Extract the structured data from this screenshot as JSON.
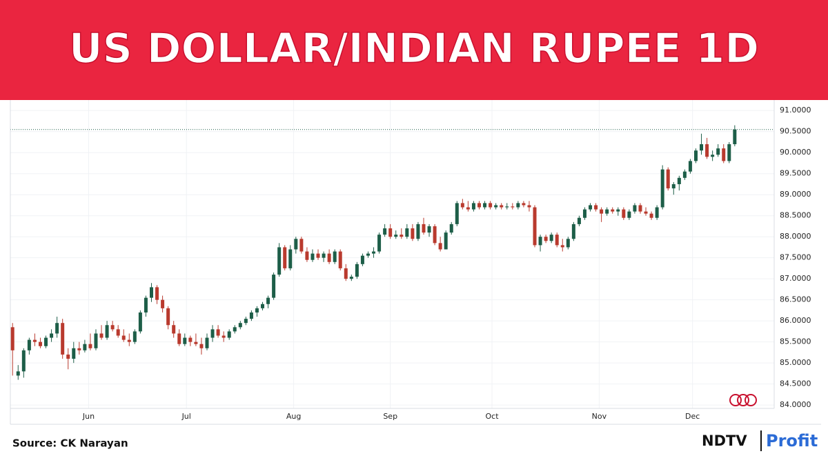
{
  "chart_data": {
    "type": "candlestick",
    "title": "US DOLLAR/INDIAN RUPEE 1D",
    "source": "Source: CK Narayan",
    "brand": [
      "NDTV",
      "Profit"
    ],
    "up_color": "#1d5e48",
    "down_color": "#b93a2e",
    "grid": true,
    "ylim": [
      83.92,
      91.25
    ],
    "xlim": [
      -0.4,
      137.1
    ],
    "yticks": [
      {
        "value": 84,
        "label": "84.0000"
      },
      {
        "value": 84.5,
        "label": "84.5000"
      },
      {
        "value": 85,
        "label": "85.0000"
      },
      {
        "value": 85.5,
        "label": "85.5000"
      },
      {
        "value": 86,
        "label": "86.0000"
      },
      {
        "value": 86.5,
        "label": "86.5000"
      },
      {
        "value": 87,
        "label": "87.0000"
      },
      {
        "value": 87.5,
        "label": "87.5000"
      },
      {
        "value": 88,
        "label": "88.0000"
      },
      {
        "value": 88.5,
        "label": "88.5000"
      },
      {
        "value": 89,
        "label": "89.0000"
      },
      {
        "value": 89.5,
        "label": "89.5000"
      },
      {
        "value": 90,
        "label": "90.0000"
      },
      {
        "value": 90.5,
        "label": "90.5000"
      },
      {
        "value": 91,
        "label": "91.0000"
      }
    ],
    "xticks": [
      {
        "value": 13.7,
        "label": "Jun"
      },
      {
        "value": 31.3,
        "label": "Jul"
      },
      {
        "value": 50.6,
        "label": "Aug"
      },
      {
        "value": 68,
        "label": "Sep"
      },
      {
        "value": 86.3,
        "label": "Oct"
      },
      {
        "value": 105.6,
        "label": "Nov"
      },
      {
        "value": 122.4,
        "label": "Dec"
      }
    ],
    "ohlc": [
      [
        85.85,
        85.95,
        84.7,
        85.3
      ],
      [
        84.7,
        84.95,
        84.6,
        84.8
      ],
      [
        84.8,
        85.35,
        84.65,
        85.3
      ],
      [
        85.3,
        85.6,
        85.2,
        85.55
      ],
      [
        85.55,
        85.7,
        85.4,
        85.5
      ],
      [
        85.5,
        85.6,
        85.35,
        85.4
      ],
      [
        85.4,
        85.65,
        85.35,
        85.6
      ],
      [
        85.6,
        85.8,
        85.5,
        85.7
      ],
      [
        85.7,
        86.1,
        85.6,
        85.95
      ],
      [
        85.95,
        86.05,
        85.1,
        85.2
      ],
      [
        85.2,
        85.35,
        84.85,
        85.1
      ],
      [
        85.1,
        85.5,
        85.0,
        85.35
      ],
      [
        85.35,
        85.5,
        85.2,
        85.3
      ],
      [
        85.3,
        85.55,
        85.25,
        85.45
      ],
      [
        85.45,
        85.7,
        85.3,
        85.35
      ],
      [
        85.35,
        85.8,
        85.3,
        85.7
      ],
      [
        85.7,
        85.9,
        85.55,
        85.6
      ],
      [
        85.6,
        86.0,
        85.55,
        85.9
      ],
      [
        85.9,
        86.0,
        85.75,
        85.8
      ],
      [
        85.8,
        85.9,
        85.6,
        85.65
      ],
      [
        85.65,
        85.8,
        85.5,
        85.55
      ],
      [
        85.55,
        85.7,
        85.4,
        85.5
      ],
      [
        85.5,
        85.8,
        85.45,
        85.75
      ],
      [
        85.75,
        86.25,
        85.7,
        86.2
      ],
      [
        86.2,
        86.6,
        86.1,
        86.55
      ],
      [
        86.55,
        86.9,
        86.45,
        86.8
      ],
      [
        86.8,
        86.85,
        86.4,
        86.5
      ],
      [
        86.5,
        86.6,
        86.2,
        86.3
      ],
      [
        86.3,
        86.35,
        85.8,
        85.9
      ],
      [
        85.9,
        86.0,
        85.6,
        85.7
      ],
      [
        85.7,
        85.8,
        85.4,
        85.45
      ],
      [
        85.45,
        85.7,
        85.4,
        85.6
      ],
      [
        85.6,
        85.65,
        85.4,
        85.5
      ],
      [
        85.5,
        85.7,
        85.4,
        85.45
      ],
      [
        85.45,
        85.6,
        85.2,
        85.35
      ],
      [
        85.35,
        85.7,
        85.3,
        85.6
      ],
      [
        85.6,
        85.9,
        85.5,
        85.8
      ],
      [
        85.8,
        85.9,
        85.6,
        85.65
      ],
      [
        85.65,
        85.75,
        85.5,
        85.6
      ],
      [
        85.6,
        85.8,
        85.55,
        85.75
      ],
      [
        85.75,
        85.9,
        85.7,
        85.85
      ],
      [
        85.85,
        86.0,
        85.8,
        85.95
      ],
      [
        85.95,
        86.1,
        85.9,
        86.05
      ],
      [
        86.05,
        86.25,
        86.0,
        86.2
      ],
      [
        86.2,
        86.35,
        86.1,
        86.3
      ],
      [
        86.3,
        86.45,
        86.25,
        86.4
      ],
      [
        86.4,
        86.6,
        86.3,
        86.55
      ],
      [
        86.55,
        87.15,
        86.5,
        87.1
      ],
      [
        87.1,
        87.85,
        87.05,
        87.75
      ],
      [
        87.75,
        87.8,
        87.2,
        87.25
      ],
      [
        87.25,
        87.8,
        87.2,
        87.7
      ],
      [
        87.7,
        88.0,
        87.6,
        87.95
      ],
      [
        87.95,
        88.0,
        87.6,
        87.65
      ],
      [
        87.65,
        87.75,
        87.4,
        87.45
      ],
      [
        87.45,
        87.7,
        87.4,
        87.6
      ],
      [
        87.6,
        87.7,
        87.45,
        87.5
      ],
      [
        87.5,
        87.65,
        87.4,
        87.6
      ],
      [
        87.6,
        87.7,
        87.35,
        87.4
      ],
      [
        87.4,
        87.7,
        87.35,
        87.65
      ],
      [
        87.65,
        87.7,
        87.2,
        87.25
      ],
      [
        87.25,
        87.35,
        86.95,
        87.0
      ],
      [
        87.0,
        87.1,
        86.95,
        87.05
      ],
      [
        87.05,
        87.4,
        87.0,
        87.35
      ],
      [
        87.35,
        87.6,
        87.3,
        87.55
      ],
      [
        87.55,
        87.65,
        87.5,
        87.6
      ],
      [
        87.6,
        87.75,
        87.5,
        87.65
      ],
      [
        87.65,
        88.1,
        87.6,
        88.05
      ],
      [
        88.05,
        88.3,
        88.0,
        88.2
      ],
      [
        88.2,
        88.3,
        87.95,
        88.0
      ],
      [
        88.0,
        88.15,
        87.95,
        88.05
      ],
      [
        88.05,
        88.2,
        87.95,
        88.0
      ],
      [
        88.0,
        88.3,
        87.95,
        88.2
      ],
      [
        88.2,
        88.3,
        87.9,
        87.95
      ],
      [
        87.95,
        88.35,
        87.9,
        88.3
      ],
      [
        88.3,
        88.45,
        88.05,
        88.1
      ],
      [
        88.1,
        88.3,
        88.0,
        88.25
      ],
      [
        88.25,
        88.3,
        87.8,
        87.85
      ],
      [
        87.85,
        88.0,
        87.65,
        87.7
      ],
      [
        87.7,
        88.15,
        87.7,
        88.1
      ],
      [
        88.1,
        88.35,
        88.05,
        88.3
      ],
      [
        88.3,
        88.85,
        88.25,
        88.8
      ],
      [
        88.8,
        88.9,
        88.65,
        88.7
      ],
      [
        88.7,
        88.85,
        88.6,
        88.65
      ],
      [
        88.65,
        88.85,
        88.6,
        88.8
      ],
      [
        88.8,
        88.85,
        88.65,
        88.7
      ],
      [
        88.7,
        88.85,
        88.65,
        88.8
      ],
      [
        88.8,
        88.85,
        88.65,
        88.7
      ],
      [
        88.7,
        88.8,
        88.65,
        88.75
      ],
      [
        88.75,
        88.8,
        88.65,
        88.7
      ],
      [
        88.7,
        88.8,
        88.65,
        88.72
      ],
      [
        88.72,
        88.8,
        88.65,
        88.7
      ],
      [
        88.7,
        88.85,
        88.65,
        88.8
      ],
      [
        88.8,
        88.85,
        88.7,
        88.75
      ],
      [
        88.75,
        88.85,
        88.6,
        88.7
      ],
      [
        88.7,
        88.75,
        87.75,
        87.8
      ],
      [
        87.8,
        88.05,
        87.65,
        88.0
      ],
      [
        88.0,
        88.05,
        87.85,
        87.9
      ],
      [
        87.9,
        88.1,
        87.85,
        88.05
      ],
      [
        88.05,
        88.1,
        87.75,
        87.8
      ],
      [
        87.8,
        87.95,
        87.65,
        87.75
      ],
      [
        87.75,
        88.0,
        87.7,
        87.95
      ],
      [
        87.95,
        88.35,
        87.9,
        88.3
      ],
      [
        88.3,
        88.5,
        88.25,
        88.45
      ],
      [
        88.45,
        88.7,
        88.4,
        88.65
      ],
      [
        88.65,
        88.8,
        88.6,
        88.75
      ],
      [
        88.75,
        88.8,
        88.6,
        88.65
      ],
      [
        88.65,
        88.7,
        88.35,
        88.55
      ],
      [
        88.55,
        88.7,
        88.5,
        88.65
      ],
      [
        88.65,
        88.7,
        88.55,
        88.6
      ],
      [
        88.6,
        88.7,
        88.5,
        88.65
      ],
      [
        88.65,
        88.7,
        88.4,
        88.45
      ],
      [
        88.45,
        88.65,
        88.4,
        88.6
      ],
      [
        88.6,
        88.8,
        88.55,
        88.75
      ],
      [
        88.75,
        88.8,
        88.55,
        88.6
      ],
      [
        88.6,
        88.7,
        88.5,
        88.55
      ],
      [
        88.55,
        88.6,
        88.4,
        88.45
      ],
      [
        88.45,
        88.75,
        88.4,
        88.7
      ],
      [
        88.7,
        89.7,
        88.65,
        89.6
      ],
      [
        89.6,
        89.65,
        89.1,
        89.15
      ],
      [
        89.15,
        89.3,
        89.0,
        89.25
      ],
      [
        89.25,
        89.45,
        89.1,
        89.4
      ],
      [
        89.4,
        89.6,
        89.35,
        89.55
      ],
      [
        89.55,
        89.85,
        89.5,
        89.8
      ],
      [
        89.8,
        90.1,
        89.75,
        90.05
      ],
      [
        90.05,
        90.45,
        89.95,
        90.2
      ],
      [
        90.2,
        90.35,
        89.85,
        89.9
      ],
      [
        89.9,
        90.05,
        89.8,
        89.95
      ],
      [
        89.95,
        90.2,
        89.9,
        90.1
      ],
      [
        90.1,
        90.2,
        89.75,
        89.8
      ],
      [
        89.8,
        90.25,
        89.75,
        90.2
      ],
      [
        90.2,
        90.65,
        90.15,
        90.55
      ]
    ]
  }
}
